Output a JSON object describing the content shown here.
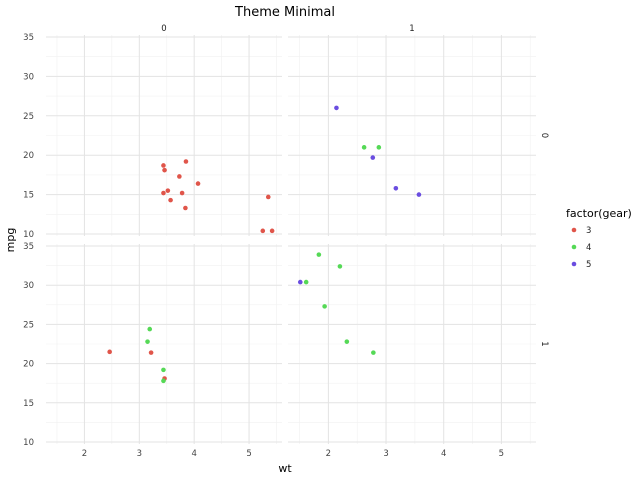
{
  "chart_data": {
    "type": "scatter",
    "title": "Theme Minimal",
    "xlabel": "wt",
    "ylabel": "mpg",
    "xlim": [
      1.3,
      5.6
    ],
    "ylim": [
      9.6,
      35.2
    ],
    "x_ticks": [
      2,
      3,
      4,
      5
    ],
    "y_ticks": [
      10,
      15,
      20,
      25,
      30,
      35
    ],
    "grid": true,
    "legend": {
      "title": "factor(gear)",
      "position": "right",
      "entries": [
        {
          "label": "3",
          "color": "#e0554a"
        },
        {
          "label": "4",
          "color": "#55d956"
        },
        {
          "label": "5",
          "color": "#6a4de0"
        }
      ]
    },
    "facet_col_labels": [
      "0",
      "1"
    ],
    "facet_row_labels": [
      "0",
      "1"
    ],
    "panels": [
      {
        "row": "0",
        "col": "0",
        "points": [
          {
            "wt": 3.44,
            "mpg": 18.7,
            "gear": "3"
          },
          {
            "wt": 3.46,
            "mpg": 18.1,
            "gear": "3"
          },
          {
            "wt": 3.57,
            "mpg": 14.3,
            "gear": "3"
          },
          {
            "wt": 4.07,
            "mpg": 16.4,
            "gear": "3"
          },
          {
            "wt": 3.73,
            "mpg": 17.3,
            "gear": "3"
          },
          {
            "wt": 3.78,
            "mpg": 15.2,
            "gear": "3"
          },
          {
            "wt": 5.25,
            "mpg": 10.4,
            "gear": "3"
          },
          {
            "wt": 5.42,
            "mpg": 10.4,
            "gear": "3"
          },
          {
            "wt": 5.35,
            "mpg": 14.7,
            "gear": "3"
          },
          {
            "wt": 3.52,
            "mpg": 15.5,
            "gear": "3"
          },
          {
            "wt": 3.44,
            "mpg": 15.2,
            "gear": "3"
          },
          {
            "wt": 3.84,
            "mpg": 13.3,
            "gear": "3"
          },
          {
            "wt": 3.85,
            "mpg": 19.2,
            "gear": "3"
          }
        ]
      },
      {
        "row": "0",
        "col": "1",
        "points": [
          {
            "wt": 2.62,
            "mpg": 21.0,
            "gear": "4"
          },
          {
            "wt": 2.875,
            "mpg": 21.0,
            "gear": "4"
          },
          {
            "wt": 2.14,
            "mpg": 26.0,
            "gear": "5"
          },
          {
            "wt": 3.17,
            "mpg": 15.8,
            "gear": "5"
          },
          {
            "wt": 2.77,
            "mpg": 19.7,
            "gear": "5"
          },
          {
            "wt": 3.57,
            "mpg": 15.0,
            "gear": "5"
          }
        ]
      },
      {
        "row": "1",
        "col": "0",
        "points": [
          {
            "wt": 2.46,
            "mpg": 21.5,
            "gear": "3"
          },
          {
            "wt": 3.215,
            "mpg": 21.4,
            "gear": "3"
          },
          {
            "wt": 3.46,
            "mpg": 18.1,
            "gear": "3"
          },
          {
            "wt": 3.19,
            "mpg": 24.4,
            "gear": "4"
          },
          {
            "wt": 3.15,
            "mpg": 22.8,
            "gear": "4"
          },
          {
            "wt": 3.44,
            "mpg": 19.2,
            "gear": "4"
          },
          {
            "wt": 3.44,
            "mpg": 17.8,
            "gear": "4"
          }
        ]
      },
      {
        "row": "1",
        "col": "1",
        "points": [
          {
            "wt": 2.32,
            "mpg": 22.8,
            "gear": "4"
          },
          {
            "wt": 2.2,
            "mpg": 32.4,
            "gear": "4"
          },
          {
            "wt": 1.615,
            "mpg": 30.4,
            "gear": "4"
          },
          {
            "wt": 1.835,
            "mpg": 33.9,
            "gear": "4"
          },
          {
            "wt": 1.935,
            "mpg": 27.3,
            "gear": "4"
          },
          {
            "wt": 2.78,
            "mpg": 21.4,
            "gear": "4"
          },
          {
            "wt": 1.513,
            "mpg": 30.4,
            "gear": "5"
          }
        ]
      }
    ]
  }
}
